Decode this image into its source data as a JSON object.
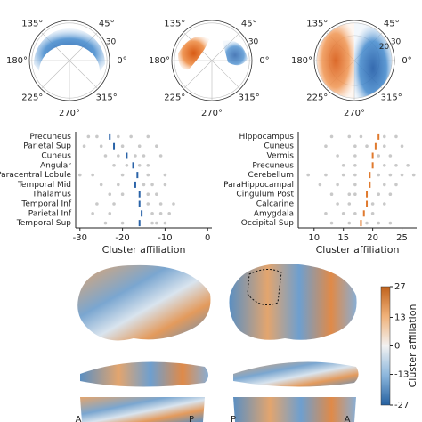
{
  "chart_data": [
    {
      "type": "polar",
      "angle_ticks": [
        {
          "value": 135,
          "label": "135°"
        },
        {
          "value": 45,
          "label": "45°"
        },
        {
          "value": 180,
          "label": "180°"
        },
        {
          "value": 0,
          "label": "0°"
        },
        {
          "value": 225,
          "label": "225°"
        },
        {
          "value": 315,
          "label": "315°"
        },
        {
          "value": 270,
          "label": "270°"
        }
      ],
      "rlim": [
        0,
        32
      ],
      "rticks": [
        30
      ]
    },
    {
      "type": "polar",
      "angle_ticks": [
        {
          "value": 135,
          "label": "135°"
        },
        {
          "value": 45,
          "label": "45°"
        },
        {
          "value": 180,
          "label": "180°"
        },
        {
          "value": 0,
          "label": "0°"
        },
        {
          "value": 225,
          "label": "225°"
        },
        {
          "value": 315,
          "label": "315°"
        },
        {
          "value": 270,
          "label": "270°"
        }
      ],
      "rlim": [
        0,
        32
      ],
      "rticks": [
        30
      ]
    },
    {
      "type": "polar",
      "angle_ticks": [
        {
          "value": 135,
          "label": "135°"
        },
        {
          "value": 45,
          "label": "45°"
        },
        {
          "value": 180,
          "label": "180°"
        },
        {
          "value": 0,
          "label": "0°"
        },
        {
          "value": 225,
          "label": "225°"
        },
        {
          "value": 315,
          "label": "315°"
        },
        {
          "value": 270,
          "label": "270°"
        }
      ],
      "rlim": [
        0,
        32
      ],
      "rticks": [
        20,
        30
      ]
    },
    {
      "type": "strip",
      "xlabel": "Cluster affiliation",
      "color": "#2a63a8",
      "categories": [
        "Precuneus",
        "Parietal Sup",
        "Cuneus",
        "Angular",
        "Paracentral Lobule",
        "Temporal Mid",
        "Thalamus",
        "Temporal Inf",
        "Parietal Inf",
        "Temporal Sup"
      ],
      "values": [
        -23,
        -22,
        -19,
        -17.5,
        -16.5,
        -17,
        -16,
        -16,
        -15.5,
        -16
      ],
      "points": [
        [
          -28,
          -26,
          -21,
          -18,
          -14
        ],
        [
          -29,
          -25,
          -20,
          -16,
          -12
        ],
        [
          -24,
          -21,
          -17,
          -15,
          -11
        ],
        [
          -22,
          -19,
          -16,
          -14
        ],
        [
          -30,
          -27,
          -20,
          -14,
          -10
        ],
        [
          -25,
          -21,
          -15,
          -13,
          -10
        ],
        [
          -23,
          -20,
          -14,
          -12
        ],
        [
          -26,
          -22,
          -14,
          -11,
          -8
        ],
        [
          -27,
          -23,
          -13,
          -11,
          -9
        ],
        [
          -24,
          -20,
          -13,
          -12,
          -10
        ]
      ],
      "xlim": [
        -31,
        1
      ],
      "xticks": [
        -30,
        -20,
        -10,
        0
      ]
    },
    {
      "type": "strip",
      "xlabel": "Cluster affiliation",
      "color": "#e07a2e",
      "categories": [
        "Hippocampus",
        "Cuneus",
        "Vermis",
        "Precuneus",
        "Cerebellum",
        "ParaHippocampal",
        "Cingulum Post",
        "Calcarine",
        "Amygdala",
        "Occipital Sup"
      ],
      "values": [
        21,
        20.5,
        20,
        20,
        19.5,
        19.5,
        19,
        19,
        18.5,
        18
      ],
      "points": [
        [
          13,
          16,
          18,
          22,
          24
        ],
        [
          12,
          17,
          19,
          22,
          25
        ],
        [
          14,
          17,
          21,
          23
        ],
        [
          15,
          17,
          22,
          24,
          26
        ],
        [
          9,
          12,
          15,
          17,
          21,
          23,
          25,
          27
        ],
        [
          11,
          14,
          17,
          22,
          24
        ],
        [
          13,
          16,
          17,
          21,
          23
        ],
        [
          14,
          16,
          20,
          22
        ],
        [
          12,
          15,
          17,
          20
        ],
        [
          13,
          16,
          19,
          21,
          23
        ]
      ],
      "xlim": [
        7.3,
        27.5
      ],
      "xticks": [
        10,
        15,
        20,
        25
      ]
    },
    {
      "type": "colorbar",
      "label": "Cluster affiliation",
      "lim": [
        -27,
        27
      ],
      "ticks": [
        27,
        13,
        0,
        -13,
        -27
      ]
    }
  ],
  "view_labels": [
    "A",
    "P",
    "P",
    "A"
  ]
}
